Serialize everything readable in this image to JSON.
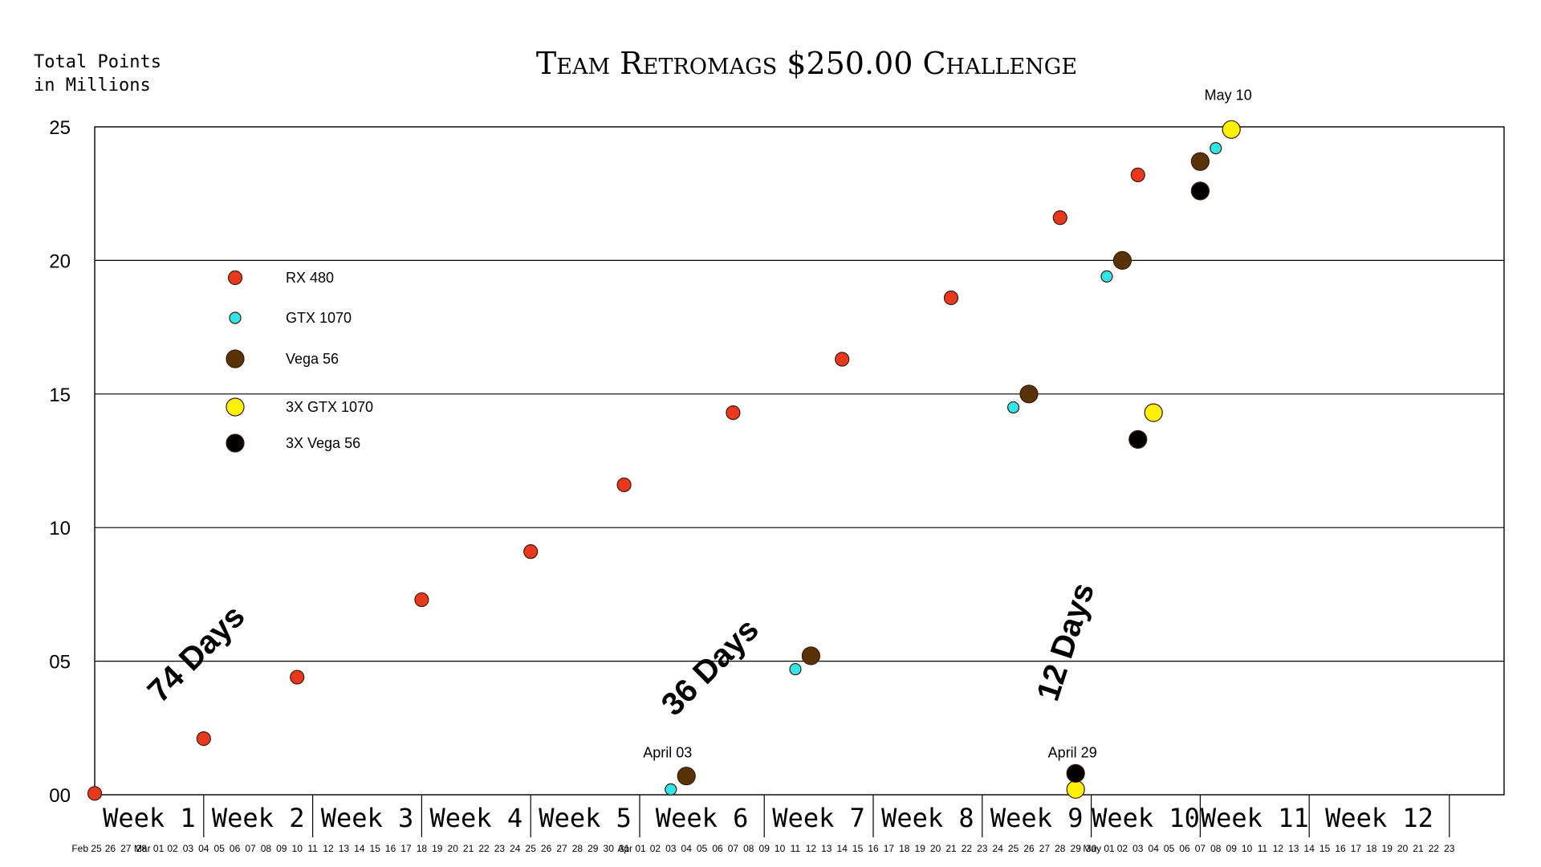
{
  "chart_data": {
    "type": "scatter",
    "title": "Team Retromags $250.00 Challenge",
    "ylabel": [
      "Total Points",
      "in Millions"
    ],
    "ylim": [
      0,
      25
    ],
    "yticks": [
      {
        "value": 0,
        "label": "00"
      },
      {
        "value": 5,
        "label": "05"
      },
      {
        "value": 10,
        "label": "10"
      },
      {
        "value": 15,
        "label": "15"
      },
      {
        "value": 20,
        "label": "20"
      },
      {
        "value": 25,
        "label": "25"
      }
    ],
    "x_start_date": "2018-02-25",
    "x_end_date": "2018-05-23",
    "grid": true,
    "legend_placement": "left",
    "weeks": [
      "Week  1",
      "Week  2",
      "Week  3",
      "Week  4",
      "Week  5",
      "Week  6",
      "Week  7",
      "Week  8",
      "Week  9",
      "Week  10",
      "Week  11",
      "Week  12"
    ],
    "week_boundaries": [
      "2018-03-04",
      "2018-03-11",
      "2018-03-18",
      "2018-03-25",
      "2018-04-01",
      "2018-04-09",
      "2018-04-16",
      "2018-04-23",
      "2018-04-30",
      "2018-05-07",
      "2018-05-14",
      "2018-05-23"
    ],
    "series": [
      {
        "name": "RX 480",
        "color": "#e8391f",
        "size": "medium",
        "points": [
          {
            "x": "2018-02-25",
            "y": 0.05
          },
          {
            "x": "2018-03-04",
            "y": 2.1
          },
          {
            "x": "2018-03-10",
            "y": 4.4
          },
          {
            "x": "2018-03-18",
            "y": 7.3
          },
          {
            "x": "2018-03-25",
            "y": 9.1
          },
          {
            "x": "2018-03-31",
            "y": 11.6
          },
          {
            "x": "2018-04-07",
            "y": 14.3
          },
          {
            "x": "2018-04-14",
            "y": 16.3
          },
          {
            "x": "2018-04-21",
            "y": 18.6
          },
          {
            "x": "2018-04-28",
            "y": 21.6
          },
          {
            "x": "2018-05-03",
            "y": 23.2
          },
          {
            "x": "2018-05-09",
            "y": 24.9
          }
        ]
      },
      {
        "name": "GTX 1070",
        "color": "#2ee6ec",
        "size": "small",
        "points": [
          {
            "x": "2018-04-03",
            "y": 0.2
          },
          {
            "x": "2018-04-11",
            "y": 4.7
          },
          {
            "x": "2018-04-25",
            "y": 14.5
          },
          {
            "x": "2018-05-01",
            "y": 19.4
          },
          {
            "x": "2018-05-08",
            "y": 24.2
          }
        ]
      },
      {
        "name": "Vega 56",
        "color": "#5a3208",
        "size": "large",
        "points": [
          {
            "x": "2018-04-04",
            "y": 0.7
          },
          {
            "x": "2018-04-12",
            "y": 5.2
          },
          {
            "x": "2018-04-26",
            "y": 15.0
          },
          {
            "x": "2018-05-02",
            "y": 20.0
          },
          {
            "x": "2018-05-07",
            "y": 23.7
          }
        ]
      },
      {
        "name": "3X GTX 1070",
        "color": "#fff200",
        "size": "large",
        "points": [
          {
            "x": "2018-04-29",
            "y": 0.2
          },
          {
            "x": "2018-05-04",
            "y": 14.3
          },
          {
            "x": "2018-05-09",
            "y": 24.9
          }
        ]
      },
      {
        "name": "3X Vega 56",
        "color": "#000000",
        "size": "large",
        "points": [
          {
            "x": "2018-04-29",
            "y": 0.8
          },
          {
            "x": "2018-05-03",
            "y": 13.3
          },
          {
            "x": "2018-05-07",
            "y": 22.6
          }
        ]
      }
    ],
    "annotations": [
      {
        "text": "May 10",
        "x": "2018-05-09",
        "y": 26.0
      },
      {
        "text": "April 03",
        "x": "2018-04-03",
        "y": 1.4
      },
      {
        "text": "April 29",
        "x": "2018-04-29",
        "y": 1.4
      }
    ],
    "range_labels": [
      {
        "text": "74 Days",
        "x": "2018-03-04",
        "y": 5.0
      },
      {
        "text": "36 Days",
        "x": "2018-04-06",
        "y": 4.5
      },
      {
        "text": "12 Days",
        "x": "2018-04-29",
        "y": 5.6
      }
    ]
  }
}
